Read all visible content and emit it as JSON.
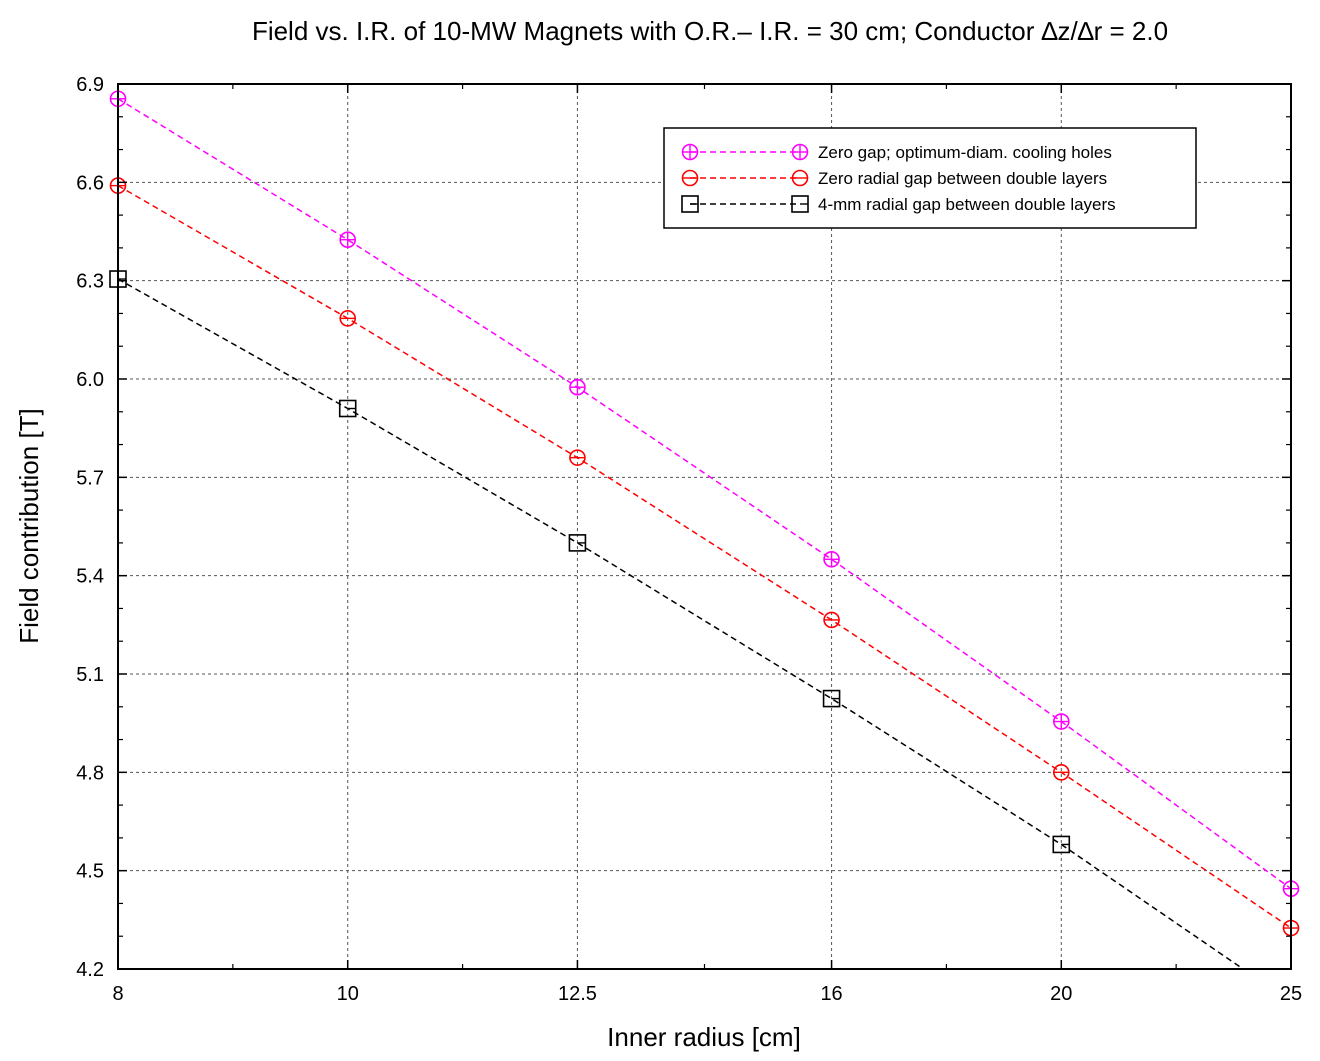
{
  "chart_data": {
    "type": "line",
    "title": "Field vs. I.R. of 10-MW Magnets with O.R.– I.R. = 30 cm; Conductor ∆z/∆r = 2.0",
    "xlabel": "Inner radius  [cm]",
    "ylabel": "Field contribution  [T]",
    "x_scale": "log",
    "xlim": [
      8,
      25
    ],
    "ylim": [
      4.2,
      6.9
    ],
    "x_ticks": [
      8,
      10,
      12.5,
      16,
      20,
      25
    ],
    "x_tick_labels": [
      "8",
      "10",
      "12.5",
      "16",
      "20",
      "25"
    ],
    "y_ticks": [
      4.2,
      4.5,
      4.8,
      5.1,
      5.4,
      5.7,
      6.0,
      6.3,
      6.6,
      6.9
    ],
    "y_tick_labels": [
      "4.2",
      "4.5",
      "4.8",
      "5.1",
      "5.4",
      "5.7",
      "6.0",
      "6.3",
      "6.6",
      "6.9"
    ],
    "grid": true,
    "legend_position": "top-right",
    "series": [
      {
        "name": "Zero gap; optimum-diam. cooling holes",
        "color": "#ff00ff",
        "marker": "circle-plus",
        "x": [
          8,
          10,
          12.5,
          16,
          20,
          25
        ],
        "y": [
          6.855,
          6.425,
          5.975,
          5.45,
          4.955,
          4.445
        ]
      },
      {
        "name": "Zero radial gap between double layers",
        "color": "#ff0000",
        "marker": "circle-minus",
        "x": [
          8,
          10,
          12.5,
          16,
          20,
          25
        ],
        "y": [
          6.59,
          6.185,
          5.76,
          5.265,
          4.8,
          4.325
        ]
      },
      {
        "name": "4-mm radial gap between double layers",
        "color": "#000000",
        "marker": "square-minus",
        "x": [
          8,
          10,
          12.5,
          16,
          20,
          25
        ],
        "y": [
          6.305,
          5.91,
          5.5,
          5.025,
          4.58,
          4.1
        ]
      }
    ]
  }
}
